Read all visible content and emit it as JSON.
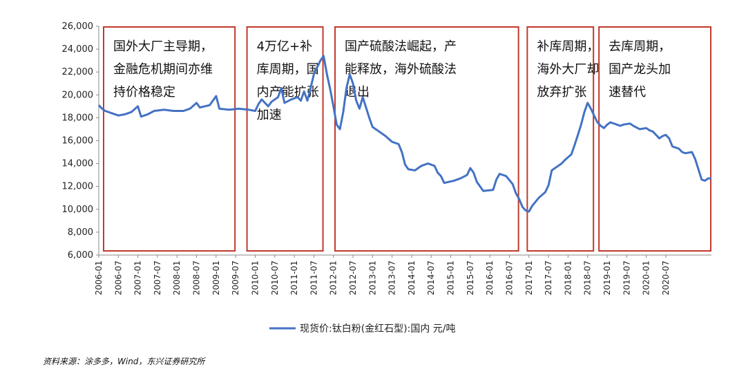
{
  "chart_data": {
    "type": "line",
    "title": "",
    "xlabel": "",
    "ylabel": "",
    "ylim": [
      6000,
      26000
    ],
    "y_ticks": [
      6000,
      8000,
      10000,
      12000,
      14000,
      16000,
      18000,
      20000,
      22000,
      24000,
      26000
    ],
    "y_tick_labels": [
      "6,000",
      "8,000",
      "10,000",
      "12,000",
      "14,000",
      "16,000",
      "18,000",
      "20,000",
      "22,000",
      "24,000",
      "26,000"
    ],
    "x_tick_labels": [
      "2006-01",
      "2006-07",
      "2007-01",
      "2007-07",
      "2008-01",
      "2008-07",
      "2009-01",
      "2009-07",
      "2010-01",
      "2010-07",
      "2011-01",
      "2011-07",
      "2012-01",
      "2012-07",
      "2013-01",
      "2013-07",
      "2014-01",
      "2014-07",
      "2015-01",
      "2015-07",
      "2016-01",
      "2016-07",
      "2017-01",
      "2017-07",
      "2018-01",
      "2018-07",
      "2019-01",
      "2019-07",
      "2020-01",
      "2020-07"
    ],
    "line_color": "#4472c4",
    "box_color": "#c0392b",
    "legend_position": "bottom",
    "series": [
      {
        "name": "现货价:钛白粉(金红石型):国内 元/吨",
        "points": [
          [
            "2006-01",
            19100
          ],
          [
            "2006-02",
            18800
          ],
          [
            "2006-03",
            18600
          ],
          [
            "2006-05",
            18400
          ],
          [
            "2006-07",
            18200
          ],
          [
            "2006-09",
            18300
          ],
          [
            "2006-11",
            18500
          ],
          [
            "2007-01",
            19000
          ],
          [
            "2007-02",
            18100
          ],
          [
            "2007-04",
            18300
          ],
          [
            "2007-06",
            18600
          ],
          [
            "2007-09",
            18700
          ],
          [
            "2007-12",
            18600
          ],
          [
            "2008-03",
            18600
          ],
          [
            "2008-05",
            18800
          ],
          [
            "2008-07",
            19300
          ],
          [
            "2008-08",
            18900
          ],
          [
            "2008-11",
            19100
          ],
          [
            "2009-01",
            19900
          ],
          [
            "2009-02",
            18800
          ],
          [
            "2009-05",
            18700
          ],
          [
            "2009-08",
            18800
          ],
          [
            "2009-11",
            18700
          ],
          [
            "2010-01",
            18600
          ],
          [
            "2010-02",
            19200
          ],
          [
            "2010-03",
            19600
          ],
          [
            "2010-05",
            19000
          ],
          [
            "2010-06",
            19400
          ],
          [
            "2010-08",
            19800
          ],
          [
            "2010-09",
            20600
          ],
          [
            "2010-10",
            19300
          ],
          [
            "2010-12",
            19600
          ],
          [
            "2011-02",
            19800
          ],
          [
            "2011-03",
            19500
          ],
          [
            "2011-04",
            20300
          ],
          [
            "2011-05",
            19500
          ],
          [
            "2011-06",
            20600
          ],
          [
            "2011-07",
            21800
          ],
          [
            "2011-08",
            22400
          ],
          [
            "2011-09",
            23000
          ],
          [
            "2011-10",
            23400
          ],
          [
            "2011-11",
            21800
          ],
          [
            "2011-12",
            20500
          ],
          [
            "2012-01",
            19000
          ],
          [
            "2012-02",
            17400
          ],
          [
            "2012-03",
            17000
          ],
          [
            "2012-04",
            18500
          ],
          [
            "2012-05",
            20600
          ],
          [
            "2012-06",
            21800
          ],
          [
            "2012-07",
            21000
          ],
          [
            "2012-08",
            19500
          ],
          [
            "2012-09",
            18800
          ],
          [
            "2012-10",
            19800
          ],
          [
            "2012-11",
            18900
          ],
          [
            "2012-12",
            18000
          ],
          [
            "2013-01",
            17200
          ],
          [
            "2013-03",
            16800
          ],
          [
            "2013-05",
            16400
          ],
          [
            "2013-07",
            15900
          ],
          [
            "2013-09",
            15700
          ],
          [
            "2013-10",
            15000
          ],
          [
            "2013-11",
            13900
          ],
          [
            "2013-12",
            13500
          ],
          [
            "2014-02",
            13400
          ],
          [
            "2014-04",
            13800
          ],
          [
            "2014-06",
            14000
          ],
          [
            "2014-08",
            13800
          ],
          [
            "2014-09",
            13200
          ],
          [
            "2014-10",
            12900
          ],
          [
            "2014-11",
            12300
          ],
          [
            "2015-02",
            12500
          ],
          [
            "2015-04",
            12700
          ],
          [
            "2015-06",
            13000
          ],
          [
            "2015-07",
            13600
          ],
          [
            "2015-08",
            13200
          ],
          [
            "2015-09",
            12400
          ],
          [
            "2015-10",
            12000
          ],
          [
            "2015-11",
            11600
          ],
          [
            "2016-02",
            11700
          ],
          [
            "2016-03",
            12600
          ],
          [
            "2016-04",
            13100
          ],
          [
            "2016-06",
            12900
          ],
          [
            "2016-08",
            12200
          ],
          [
            "2016-09",
            11400
          ],
          [
            "2016-10",
            10900
          ],
          [
            "2016-11",
            10200
          ],
          [
            "2016-12",
            9900
          ],
          [
            "2017-01",
            9800
          ],
          [
            "2017-02",
            10300
          ],
          [
            "2017-04",
            11000
          ],
          [
            "2017-06",
            11500
          ],
          [
            "2017-07",
            12100
          ],
          [
            "2017-08",
            13400
          ],
          [
            "2017-09",
            13600
          ],
          [
            "2017-11",
            14000
          ],
          [
            "2017-12",
            14300
          ],
          [
            "2018-02",
            14800
          ],
          [
            "2018-03",
            15600
          ],
          [
            "2018-04",
            16500
          ],
          [
            "2018-05",
            17400
          ],
          [
            "2018-06",
            18500
          ],
          [
            "2018-07",
            19300
          ],
          [
            "2018-08",
            18800
          ],
          [
            "2018-09",
            18200
          ],
          [
            "2018-10",
            17600
          ],
          [
            "2018-11",
            17300
          ],
          [
            "2018-12",
            17100
          ],
          [
            "2019-01",
            17400
          ],
          [
            "2019-02",
            17600
          ],
          [
            "2019-04",
            17400
          ],
          [
            "2019-05",
            17300
          ],
          [
            "2019-06",
            17400
          ],
          [
            "2019-08",
            17500
          ],
          [
            "2019-09",
            17300
          ],
          [
            "2019-11",
            17000
          ],
          [
            "2020-01",
            17100
          ],
          [
            "2020-02",
            16900
          ],
          [
            "2020-03",
            16800
          ],
          [
            "2020-04",
            16500
          ],
          [
            "2020-05",
            16200
          ],
          [
            "2020-06",
            16400
          ],
          [
            "2020-07",
            16500
          ],
          [
            "2020-08",
            16200
          ],
          [
            "2020-09",
            15500
          ],
          [
            "2020-10",
            15400
          ],
          [
            "2020-11",
            15300
          ],
          [
            "2020-12",
            15000
          ],
          [
            "2021-01",
            14900
          ],
          [
            "2021-03",
            15000
          ],
          [
            "2021-04",
            14400
          ],
          [
            "2021-05",
            13500
          ],
          [
            "2021-06",
            12600
          ],
          [
            "2021-07",
            12500
          ],
          [
            "2021-08",
            12700
          ],
          [
            "2021-09",
            12700
          ]
        ]
      }
    ],
    "annotations": [
      {
        "lines": [
          "国外大厂主导期，",
          "金融危机期间亦维",
          "持价格稳定"
        ],
        "start": "2006-01",
        "end": "2009-07"
      },
      {
        "lines": [
          "4万亿+补",
          "库周期，国",
          "内产能扩张",
          "加速"
        ],
        "start": "2009-09",
        "end": "2011-10"
      },
      {
        "lines": [
          "国产硫酸法崛起，产",
          "能释放，海外硫酸法",
          "退出"
        ],
        "start": "2011-12",
        "end": "2016-10"
      },
      {
        "lines": [
          "补库周期，",
          "海外大厂却",
          "放弃扩张"
        ],
        "start": "2016-11",
        "end": "2018-09"
      },
      {
        "lines": [
          "去库周期，",
          "国产龙头加",
          "速替代"
        ],
        "start": "2018-09",
        "end": "2021-09"
      }
    ]
  },
  "source_note": "资料来源：涂多多，Wind，东兴证券研究所"
}
